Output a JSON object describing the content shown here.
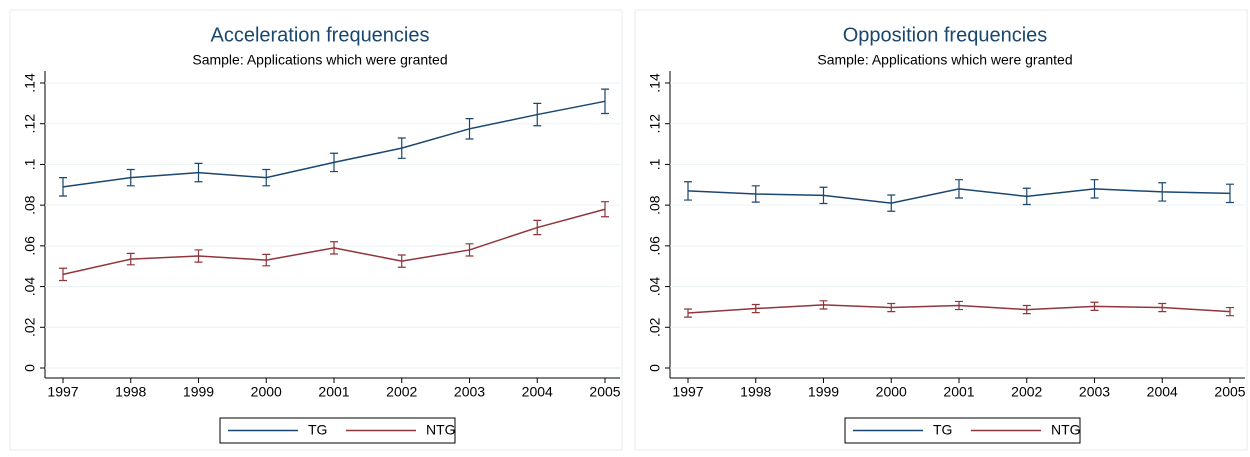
{
  "chart_data": [
    {
      "type": "line",
      "title": "Acceleration frequencies",
      "subtitle": "Sample: Applications which were granted",
      "x": [
        1997,
        1998,
        1999,
        2000,
        2001,
        2002,
        2003,
        2004,
        2005
      ],
      "xlim": [
        1997,
        2005
      ],
      "xticks": [
        1997,
        1998,
        1999,
        2000,
        2001,
        2002,
        2003,
        2004,
        2005
      ],
      "ylim": [
        0,
        0.14
      ],
      "yticks": [
        0,
        {
          "value": 0.02,
          "label": ".02"
        },
        {
          "value": 0.04,
          "label": ".04"
        },
        {
          "value": 0.06,
          "label": ".06"
        },
        {
          "value": 0.08,
          "label": ".08"
        },
        {
          "value": 0.1,
          "label": ".1"
        },
        {
          "value": 0.12,
          "label": ".12"
        },
        {
          "value": 0.14,
          "label": ".14"
        }
      ],
      "grid": true,
      "series": [
        {
          "name": "TG",
          "color": "#1a476f",
          "values": [
            0.089,
            0.0935,
            0.096,
            0.0935,
            0.101,
            0.108,
            0.1175,
            0.1245,
            0.131
          ],
          "errors": [
            0.0045,
            0.004,
            0.0045,
            0.004,
            0.0045,
            0.005,
            0.005,
            0.0055,
            0.006
          ]
        },
        {
          "name": "NTG",
          "color": "#90353b",
          "values": [
            0.046,
            0.0535,
            0.055,
            0.053,
            0.059,
            0.0525,
            0.058,
            0.069,
            0.078
          ],
          "errors": [
            0.003,
            0.0028,
            0.003,
            0.0028,
            0.003,
            0.003,
            0.003,
            0.0035,
            0.0037
          ]
        }
      ]
    },
    {
      "type": "line",
      "title": "Opposition frequencies",
      "subtitle": "Sample: Applications which were granted",
      "x": [
        1997,
        1998,
        1999,
        2000,
        2001,
        2002,
        2003,
        2004,
        2005
      ],
      "xlim": [
        1997,
        2005
      ],
      "xticks": [
        1997,
        1998,
        1999,
        2000,
        2001,
        2002,
        2003,
        2004,
        2005
      ],
      "ylim": [
        0,
        0.14
      ],
      "yticks": [
        0,
        {
          "value": 0.02,
          "label": ".02"
        },
        {
          "value": 0.04,
          "label": ".04"
        },
        {
          "value": 0.06,
          "label": ".06"
        },
        {
          "value": 0.08,
          "label": ".08"
        },
        {
          "value": 0.1,
          "label": ".1"
        },
        {
          "value": 0.12,
          "label": ".12"
        },
        {
          "value": 0.14,
          "label": ".14"
        }
      ],
      "grid": true,
      "series": [
        {
          "name": "TG",
          "color": "#1a476f",
          "values": [
            0.087,
            0.0855,
            0.0848,
            0.081,
            0.088,
            0.0843,
            0.088,
            0.0865,
            0.0858
          ],
          "errors": [
            0.0045,
            0.004,
            0.004,
            0.004,
            0.0045,
            0.004,
            0.0045,
            0.0045,
            0.0045
          ]
        },
        {
          "name": "NTG",
          "color": "#90353b",
          "values": [
            0.027,
            0.0292,
            0.031,
            0.0297,
            0.0307,
            0.0287,
            0.0303,
            0.0297,
            0.0277
          ],
          "errors": [
            0.002,
            0.002,
            0.002,
            0.002,
            0.002,
            0.002,
            0.002,
            0.002,
            0.002
          ]
        }
      ]
    }
  ]
}
